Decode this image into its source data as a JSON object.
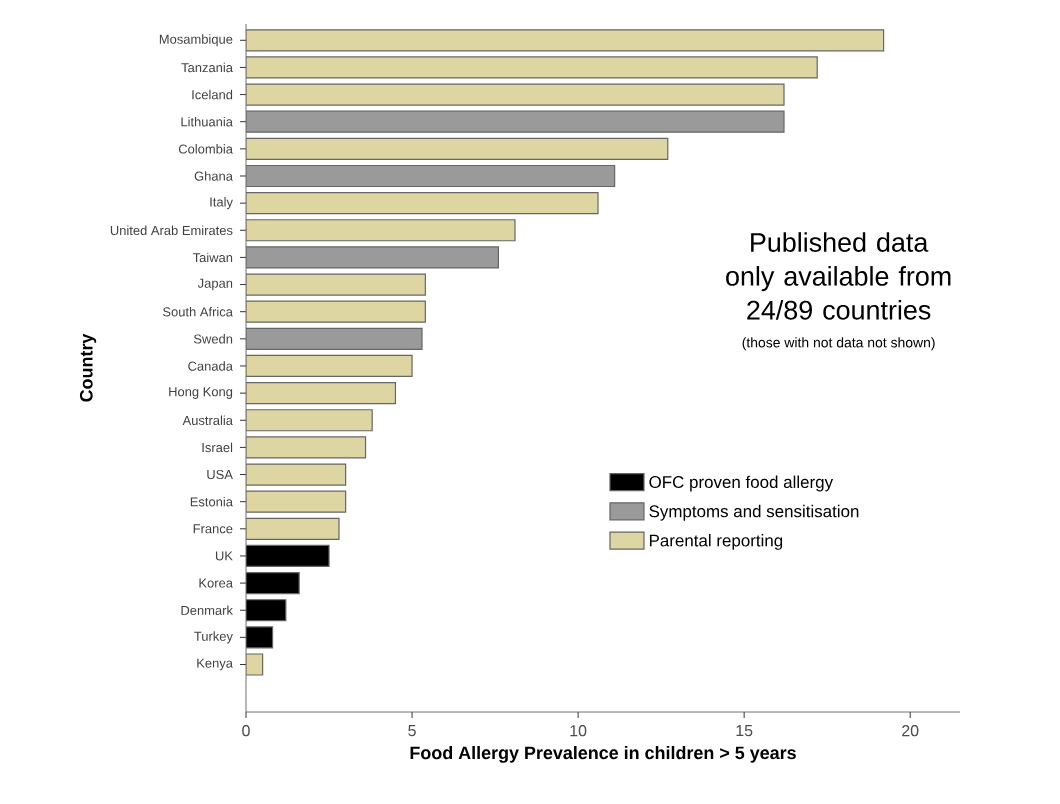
{
  "chart_data": {
    "type": "bar",
    "orientation": "horizontal",
    "xlabel": "Food Allergy Prevalence in children > 5 years",
    "ylabel": "Country",
    "categories": [
      "Mosambique",
      "Tanzania",
      "Iceland",
      "Lithuania",
      "Colombia",
      "Ghana",
      "Italy",
      "United Arab Emirates",
      "Taiwan",
      "Japan",
      "South Africa",
      "Swedn",
      "Canada",
      "Hong Kong",
      "Australia",
      "Israel",
      "USA",
      "Estonia",
      "France",
      "UK",
      "Korea",
      "Denmark",
      "Turkey",
      "Kenya"
    ],
    "series": [
      {
        "name": "OFC proven food allergy",
        "color": "#000000",
        "values": [
          null,
          null,
          null,
          null,
          null,
          null,
          null,
          null,
          null,
          null,
          null,
          null,
          null,
          null,
          null,
          null,
          null,
          null,
          null,
          2.5,
          1.6,
          1.2,
          0.8,
          null
        ]
      },
      {
        "name": "Symptoms and sensitisation",
        "color": "#9a9a9a",
        "values": [
          null,
          null,
          null,
          16.2,
          null,
          11.1,
          null,
          null,
          7.6,
          null,
          null,
          5.3,
          null,
          null,
          null,
          null,
          null,
          null,
          null,
          null,
          null,
          null,
          null,
          null
        ]
      },
      {
        "name": "Parental reporting",
        "color": "#ddd6a3",
        "values": [
          19.2,
          17.2,
          16.2,
          null,
          12.7,
          null,
          10.6,
          8.1,
          null,
          5.4,
          5.4,
          null,
          5.0,
          4.5,
          3.8,
          3.6,
          3.0,
          3.0,
          2.8,
          null,
          null,
          null,
          null,
          0.5
        ]
      }
    ],
    "xlim": [
      0,
      21.5
    ],
    "xticks": [
      0,
      5,
      10,
      15,
      20
    ],
    "legend": "right",
    "annotations": [
      "Published data only available from 24/89 countries",
      "(those with not data not shown)"
    ]
  }
}
